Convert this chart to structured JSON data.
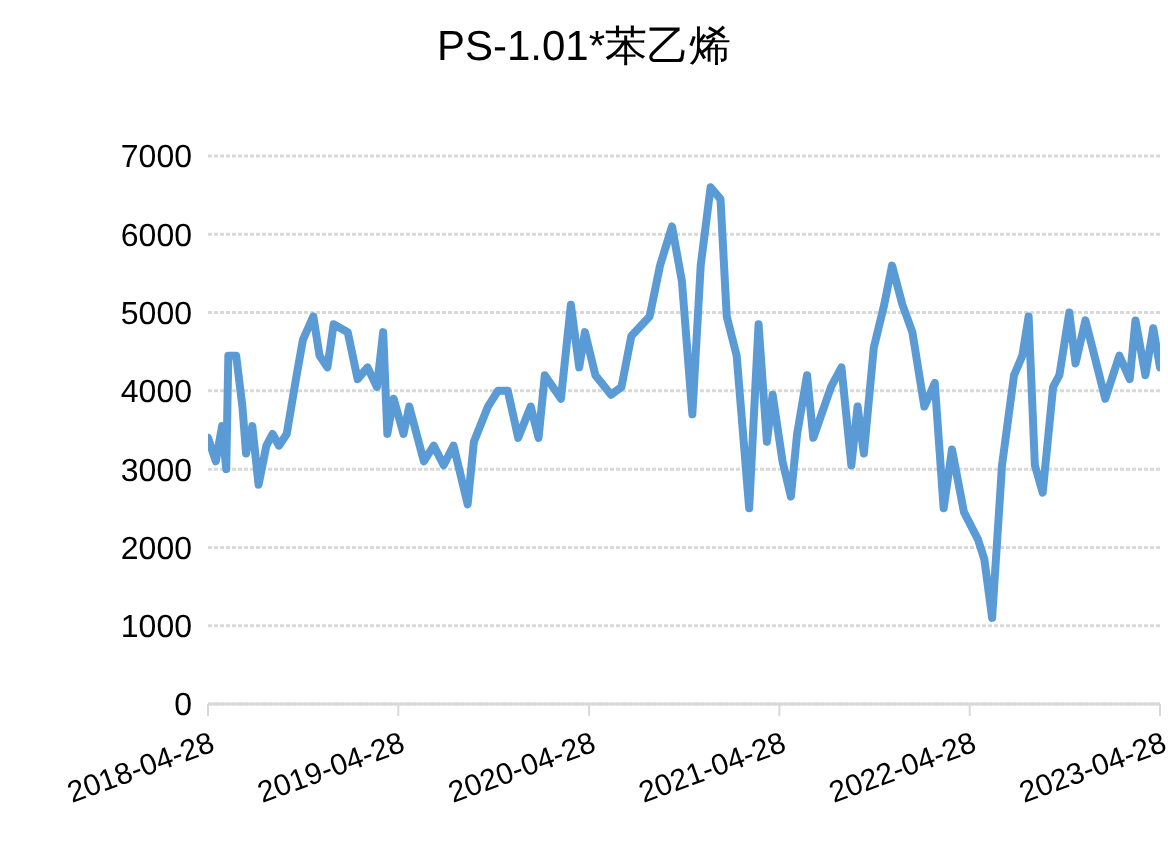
{
  "chart_data": {
    "type": "line",
    "title": "PS-1.01*苯乙烯",
    "x": [
      "2018-04-28",
      "2018-05-13",
      "2018-05-25",
      "2018-06-02",
      "2018-06-06",
      "2018-06-21",
      "2018-07-03",
      "2018-07-10",
      "2018-07-22",
      "2018-08-03",
      "2018-08-18",
      "2018-08-30",
      "2018-09-11",
      "2018-09-26",
      "2018-10-15",
      "2018-10-27",
      "2018-11-16",
      "2018-11-28",
      "2018-12-13",
      "2018-12-25",
      "2019-01-21",
      "2019-02-09",
      "2019-02-28",
      "2019-03-18",
      "2019-03-30",
      "2019-04-07",
      "2019-04-19",
      "2019-05-08",
      "2019-05-19",
      "2019-06-16",
      "2019-07-05",
      "2019-07-24",
      "2019-08-12",
      "2019-09-08",
      "2019-09-20",
      "2019-10-17",
      "2019-11-05",
      "2019-11-24",
      "2019-12-14",
      "2020-01-07",
      "2020-01-22",
      "2020-02-03",
      "2020-03-05",
      "2020-03-24",
      "2020-04-09",
      "2020-04-20",
      "2020-05-10",
      "2020-06-09",
      "2020-06-29",
      "2020-07-18",
      "2020-08-22",
      "2020-09-11",
      "2020-10-04",
      "2020-10-23",
      "2020-11-12",
      "2020-11-28",
      "2020-12-17",
      "2021-01-05",
      "2021-01-17",
      "2021-02-05",
      "2021-03-01",
      "2021-03-19",
      "2021-04-04",
      "2021-04-15",
      "2021-05-04",
      "2021-05-20",
      "2021-06-01",
      "2021-06-20",
      "2021-07-02",
      "2021-08-05",
      "2021-08-25",
      "2021-09-13",
      "2021-09-25",
      "2021-10-07",
      "2021-10-26",
      "2021-11-15",
      "2021-11-30",
      "2021-12-20",
      "2022-01-08",
      "2022-01-31",
      "2022-02-20",
      "2022-03-09",
      "2022-03-25",
      "2022-04-17",
      "2022-05-14",
      "2022-05-26",
      "2022-06-10",
      "2022-06-29",
      "2022-07-22",
      "2022-08-07",
      "2022-08-19",
      "2022-08-31",
      "2022-09-15",
      "2022-10-05",
      "2022-10-17",
      "2022-11-05",
      "2022-11-17",
      "2022-12-06",
      "2022-12-25",
      "2023-01-13",
      "2023-02-09",
      "2023-03-01",
      "2023-03-12",
      "2023-03-31",
      "2023-04-15",
      "2023-04-28"
    ],
    "series": [
      {
        "color": "#5b9bd5",
        "values": [
          3400,
          3100,
          3550,
          3000,
          4450,
          4450,
          3800,
          3200,
          3550,
          2800,
          3300,
          3450,
          3300,
          3450,
          4200,
          4650,
          4950,
          4450,
          4300,
          4850,
          4750,
          4150,
          4300,
          4050,
          4750,
          3450,
          3900,
          3450,
          3800,
          3100,
          3300,
          3050,
          3300,
          2550,
          3350,
          3800,
          4000,
          4000,
          3400,
          3800,
          3400,
          4200,
          3900,
          5100,
          4300,
          4750,
          4200,
          3950,
          4050,
          4700,
          4950,
          5600,
          6100,
          5400,
          3700,
          5600,
          6600,
          6450,
          4950,
          4450,
          2500,
          4850,
          3350,
          3950,
          3100,
          2650,
          3450,
          4200,
          3400,
          4050,
          4300,
          3050,
          3800,
          3200,
          4550,
          5100,
          5600,
          5100,
          4750,
          3800,
          4100,
          2500,
          3250,
          2450,
          2100,
          1850,
          1100,
          3050,
          4200,
          4450,
          4950,
          3050,
          2700,
          4050,
          4200,
          5000,
          4350,
          4900,
          4400,
          3900,
          4450,
          4150,
          4900,
          4200,
          4800,
          4300
        ]
      }
    ],
    "xlim": [
      "2018-04-28",
      "2023-04-28"
    ],
    "xticks": [
      "2018-04-28",
      "2019-04-28",
      "2020-04-28",
      "2021-04-28",
      "2022-04-28",
      "2023-04-28"
    ],
    "ylim": [
      0,
      7000
    ],
    "yticks": [
      0,
      1000,
      2000,
      3000,
      4000,
      5000,
      6000,
      7000
    ],
    "grid": "y",
    "marker": "none",
    "line_style": "solid"
  }
}
